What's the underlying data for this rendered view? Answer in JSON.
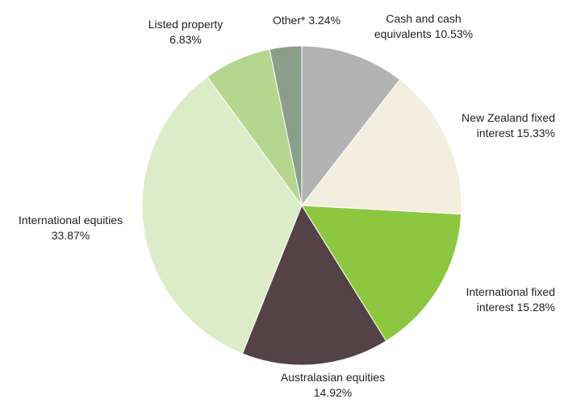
{
  "chart_data": {
    "type": "pie",
    "categories": [
      "Cash and cash equivalents",
      "New Zealand fixed interest",
      "International fixed interest",
      "Australasian equities",
      "International equities",
      "Listed property",
      "Other*"
    ],
    "values": [
      10.53,
      15.33,
      15.28,
      14.92,
      33.87,
      6.83,
      3.24
    ],
    "value_labels": [
      "10.53%",
      "15.33%",
      "15.28%",
      "14.92%",
      "33.87%",
      "6.83%",
      "3.24%"
    ],
    "colors": [
      "#b3b3b3",
      "#f3efe0",
      "#8dc63f",
      "#534346",
      "#dcecc8",
      "#b5d68e",
      "#8a9e8a"
    ]
  }
}
